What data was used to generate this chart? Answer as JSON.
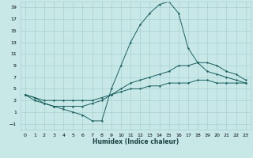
{
  "xlabel": "Humidex (Indice chaleur)",
  "bg_color": "#c8e8e8",
  "grid_color": "#a8d0d0",
  "line_color": "#1a6060",
  "xlim": [
    -0.5,
    23.5
  ],
  "ylim": [
    -2,
    20
  ],
  "xticks": [
    0,
    1,
    2,
    3,
    4,
    5,
    6,
    7,
    8,
    9,
    10,
    11,
    12,
    13,
    14,
    15,
    16,
    17,
    18,
    19,
    20,
    21,
    22,
    23
  ],
  "yticks": [
    -1,
    1,
    3,
    5,
    7,
    9,
    11,
    13,
    15,
    17,
    19
  ],
  "line1_x": [
    0,
    1,
    2,
    3,
    4,
    5,
    6,
    7,
    8,
    9,
    10,
    11,
    12,
    13,
    14,
    15,
    16,
    17,
    18,
    19,
    20,
    21,
    22,
    23
  ],
  "line1_y": [
    4,
    3.5,
    3,
    3,
    3,
    3,
    3,
    3,
    3.5,
    4,
    4.5,
    5,
    5,
    5.5,
    5.5,
    6,
    6,
    6,
    6.5,
    6.5,
    6,
    6,
    6,
    6
  ],
  "line2_x": [
    0,
    1,
    2,
    3,
    4,
    5,
    6,
    7,
    8,
    9,
    10,
    11,
    12,
    13,
    14,
    15,
    16,
    17,
    18,
    19,
    20,
    21,
    22,
    23
  ],
  "line2_y": [
    4,
    3.5,
    2.5,
    2,
    2,
    2,
    2,
    2.5,
    3,
    4,
    5,
    6,
    6.5,
    7,
    7.5,
    8,
    9,
    9,
    9.5,
    9.5,
    9,
    8,
    7.5,
    6.5
  ],
  "line3_x": [
    0,
    1,
    2,
    3,
    4,
    5,
    6,
    7,
    8,
    9,
    10,
    11,
    12,
    13,
    14,
    15,
    16,
    17,
    18,
    19,
    20,
    21,
    22,
    23
  ],
  "line3_y": [
    4,
    3,
    2.5,
    2,
    1.5,
    1,
    0.5,
    -0.5,
    -0.5,
    5,
    9,
    13,
    16,
    18,
    19.5,
    20,
    18,
    12,
    9.5,
    8,
    7.5,
    7,
    6.5,
    6
  ],
  "marker": "+",
  "marker_size": 2,
  "linewidth": 0.7,
  "tick_fontsize": 4.5,
  "xlabel_fontsize": 5.5
}
